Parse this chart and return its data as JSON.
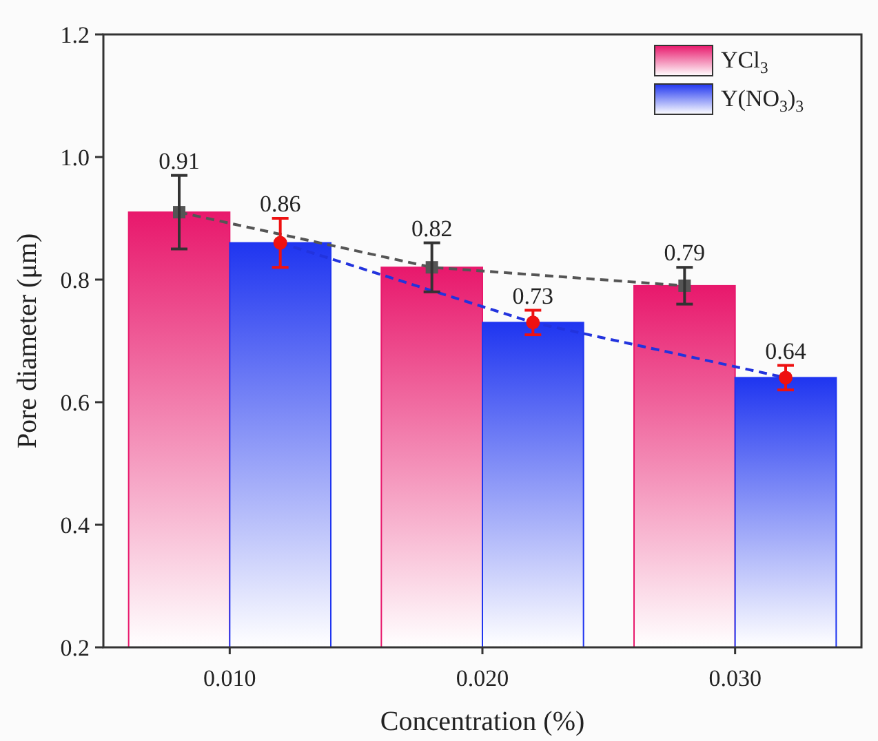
{
  "chart_data": {
    "type": "bar",
    "xlabel": "Concentration (%)",
    "ylabel": "Pore diameter (μm)",
    "categories": [
      "0.010",
      "0.020",
      "0.030"
    ],
    "series": [
      {
        "name": "YCl$_{3}$",
        "color": "#e8186c",
        "values": [
          0.91,
          0.82,
          0.79
        ],
        "errors": [
          0.06,
          0.04,
          0.03
        ],
        "value_labels": [
          "0.91",
          "0.82",
          "0.79"
        ]
      },
      {
        "name": "Y(NO$_{3}$)$_{3}$",
        "color": "#1f35f0",
        "values": [
          0.86,
          0.73,
          0.64
        ],
        "errors": [
          0.04,
          0.02,
          0.02
        ],
        "value_labels": [
          "0.86",
          "0.73",
          "0.64"
        ]
      },
      {
        "type": "line",
        "color": "#555555",
        "values": [
          0.91,
          0.82,
          0.79
        ],
        "line_style": "dashed",
        "marker": "square"
      },
      {
        "type": "scatter",
        "color": "#ee1111",
        "values": [
          0.86,
          0.73,
          0.64
        ],
        "marker": "circle"
      },
      {
        "type": "line",
        "color": "#2233dd",
        "values": [
          0.86,
          0.73,
          0.64
        ],
        "line_style": "dashed",
        "marker": "none"
      }
    ],
    "ylim": [
      0.2,
      1.2
    ],
    "yticks": [
      0.2,
      0.4,
      0.6,
      0.8,
      {
        "value": 1,
        "label": "1.0"
      },
      {
        "value": 1.2,
        "label": "1.2"
      }
    ],
    "legend": "top right",
    "grid": false
  }
}
